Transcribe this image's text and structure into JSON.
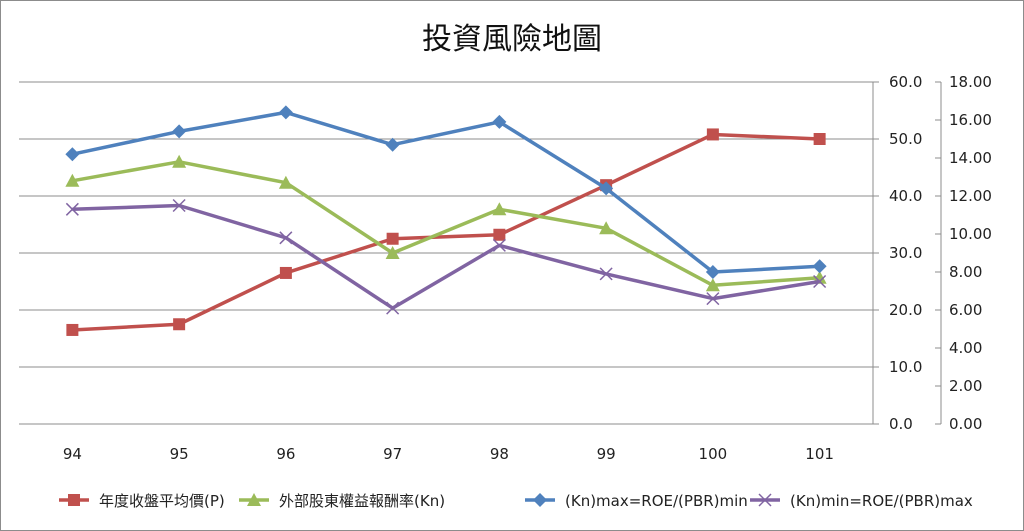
{
  "chart_data": {
    "type": "line",
    "title": "投資風險地圖",
    "xlabel": "",
    "ylabel": "",
    "categories": [
      "94",
      "95",
      "96",
      "97",
      "98",
      "99",
      "100",
      "101"
    ],
    "y_left": {
      "min": 0,
      "max": 60,
      "step": 10,
      "tick_labels": [
        "0.0",
        "10.0",
        "20.0",
        "30.0",
        "40.0",
        "50.0",
        "60.0"
      ]
    },
    "y_right": {
      "min": 0,
      "max": 18,
      "step": 2,
      "tick_labels": [
        "0.00",
        "2.00",
        "4.00",
        "6.00",
        "8.00",
        "10.00",
        "12.00",
        "14.00",
        "16.00",
        "18.00"
      ]
    },
    "grid": true,
    "legend_position": "bottom",
    "series": [
      {
        "name": "年度收盤平均價(P)",
        "axis": "left",
        "marker": "square",
        "color": "#c0504d",
        "values": [
          16.5,
          17.5,
          26.5,
          32.5,
          33.2,
          41.9,
          50.8,
          50.0
        ]
      },
      {
        "name": "外部股東權益報酬率(Kn)",
        "axis": "right",
        "marker": "triangle",
        "color": "#9bbb59",
        "values": [
          12.8,
          13.8,
          12.7,
          9.0,
          11.3,
          10.3,
          7.3,
          7.7
        ]
      },
      {
        "name": "(Kn)max=ROE/(PBR)min",
        "axis": "right",
        "marker": "diamond",
        "color": "#4f81bd",
        "values": [
          14.2,
          15.4,
          16.4,
          14.7,
          15.9,
          12.4,
          8.0,
          8.3
        ]
      },
      {
        "name": "(Kn)min=ROE/(PBR)max",
        "axis": "right",
        "marker": "x",
        "color": "#8064a2",
        "values": [
          11.3,
          11.5,
          9.8,
          6.1,
          9.4,
          7.9,
          6.6,
          7.5
        ]
      }
    ]
  }
}
